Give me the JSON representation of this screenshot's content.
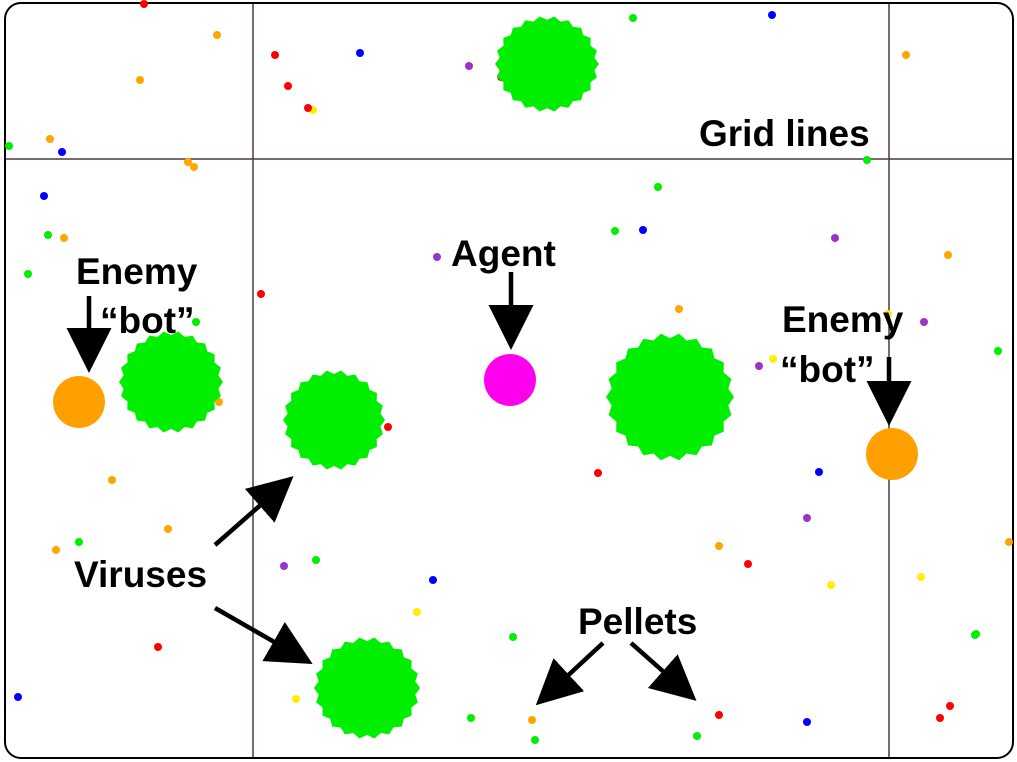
{
  "labels": {
    "grid_lines": "Grid lines",
    "agent": "Agent",
    "enemy_left_line1": "Enemy",
    "enemy_left_line2": "“bot”",
    "enemy_right_line1": "Enemy",
    "enemy_right_line2": "“bot”",
    "viruses": "Viruses",
    "pellets": "Pellets"
  },
  "colors": {
    "background": "#ffffff",
    "frame": "#000000",
    "grid": "#4a3a3a",
    "virus": "#00ee00",
    "agent": "#ff00ee",
    "enemy": "#ffa000",
    "arrow": "#000000",
    "pellet_palette": [
      "#ff0000",
      "#ffa500",
      "#0000ff",
      "#00ee00",
      "#ffee00",
      "#9933cc"
    ]
  },
  "entities": {
    "agent": {
      "type": "agent-cell",
      "icon": "magenta-circle"
    },
    "enemies": [
      {
        "type": "enemy-bot",
        "icon": "orange-circle",
        "side": "left"
      },
      {
        "type": "enemy-bot",
        "icon": "orange-circle",
        "side": "right"
      }
    ],
    "viruses": [
      {
        "type": "virus",
        "icon": "spiky-green-circle"
      },
      {
        "type": "virus",
        "icon": "spiky-green-circle"
      },
      {
        "type": "virus",
        "icon": "spiky-green-circle"
      },
      {
        "type": "virus",
        "icon": "spiky-green-circle"
      },
      {
        "type": "virus",
        "icon": "spiky-green-circle"
      }
    ]
  }
}
